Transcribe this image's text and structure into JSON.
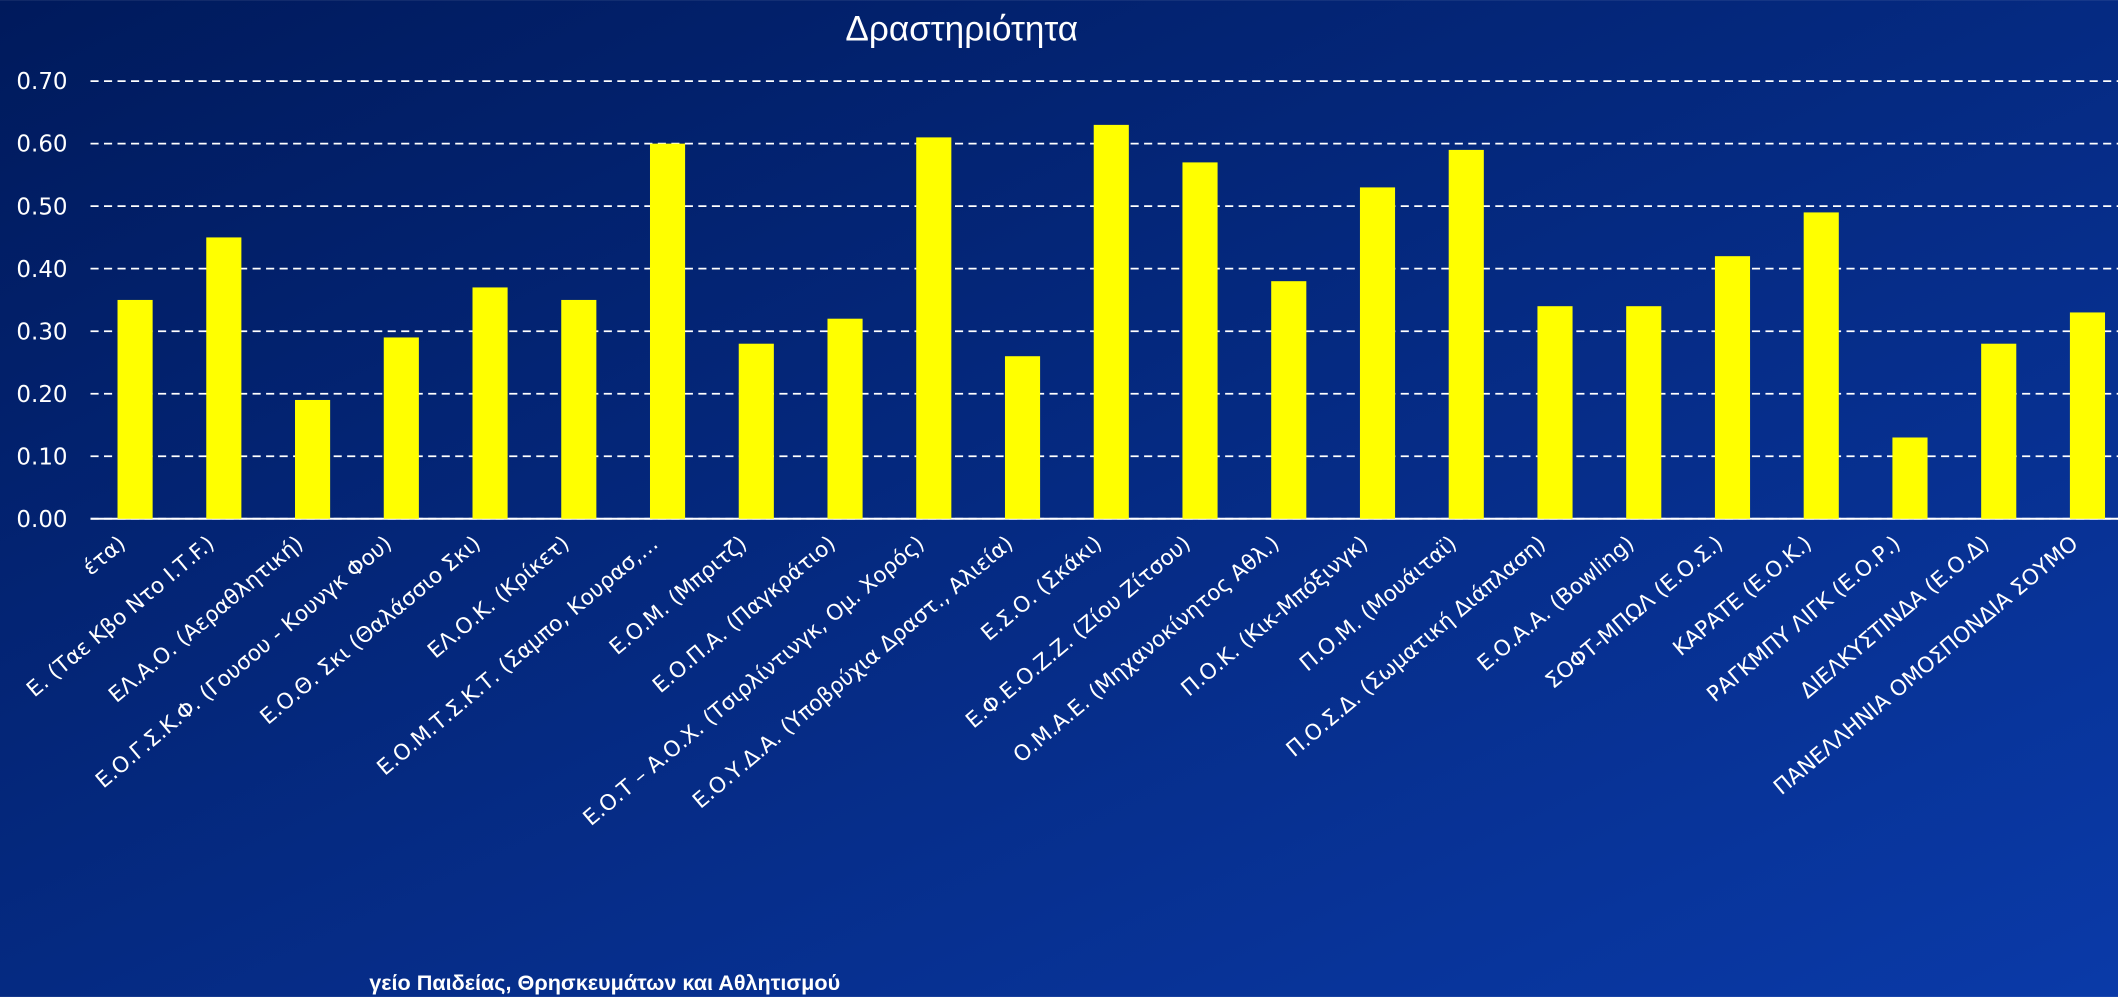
{
  "chart_data": {
    "type": "bar",
    "title": "Δραστηριότητα",
    "categories": [
      "έτα)",
      "Ε.  (Ταε Κβο Ντο Ι.Τ.F.)",
      "ΕΛ.Α.Ο.  (Αεραθλητική)",
      "Ε.Ο.Γ.Σ.Κ.Φ.  (Γουσου - Κουνγκ Φου)",
      "Ε.Ο.Θ. Σκι  (Θαλάσσιο Σκι)",
      "ΕΛ.Ο.Κ.   (Κρίκετ)",
      "Ε.Ο.Μ.Τ.Σ.Κ.Τ. (Σαμπο, Κουρασ,…",
      "Ε.Ο.Μ.   (Μπριτζ)",
      "Ε.Ο.Π.Α.  (Παγκράτιο)",
      "Ε.Ο.Τ – Α.Ο.Χ. (Τσιρλίντινγκ, Ομ. Χορός)",
      "Ε.Ο.Υ.Δ.Α.   (Υποβρύχια Δραστ., Αλιεία)",
      "Ε.Σ.Ο.   (Σκάκι)",
      "Ε.Φ.Ε.Ο.Ζ.Ζ.  (Ζίου Ζίτσου)",
      "Ο.Μ.Α.Ε. (Μηχανοκίνητος Αθλ.)",
      "Π.Ο.Κ.   (Κικ-Μπόξινγκ)",
      "Π.Ο.Μ.  (Μουάιταϊ)",
      "Π.Ο.Σ.Δ. (Σωματική Διάπλαση)",
      "Ε.Ο.Α.Α. (Bowling)",
      "ΣΟΦΤ-ΜΠΩΛ (Ε.Ο.Σ.)",
      "ΚΑΡΑΤΕ (Ε.Ο.Κ.)",
      "ΡΑΓΚΜΠΥ ΛΙΓΚ (Ε.Ο.Ρ.)",
      "ΔΙΕΛΚΥΣΤΙΝΔΑ (Ε.Ο.Δ)",
      "ΠΑΝΕΛΛΗΝΙΑ ΟΜΟΣΠΟΝΔΙΑ ΣΟΥΜΟ"
    ],
    "values": [
      0.35,
      0.45,
      0.19,
      0.29,
      0.37,
      0.35,
      0.6,
      0.28,
      0.32,
      0.61,
      0.26,
      0.63,
      0.57,
      0.38,
      0.53,
      0.59,
      0.34,
      0.34,
      0.42,
      0.49,
      0.13,
      0.28,
      0.33
    ],
    "color": "#ffff00",
    "ylim": [
      0,
      0.7
    ],
    "yticks": [
      {
        "value": 0,
        "label": "0.00"
      },
      {
        "value": 0.1,
        "label": "0.10"
      },
      {
        "value": 0.2,
        "label": "0.20"
      },
      {
        "value": 0.3,
        "label": "0.30"
      },
      {
        "value": 0.4,
        "label": "0.40"
      },
      {
        "value": 0.5,
        "label": "0.50"
      },
      {
        "value": 0.6,
        "label": "0.60"
      },
      {
        "value": 0.7,
        "label": "0.70"
      }
    ],
    "grid": true,
    "footer": "γείο Παιδείας, Θρησκευμάτων και Αθλητισμού"
  }
}
